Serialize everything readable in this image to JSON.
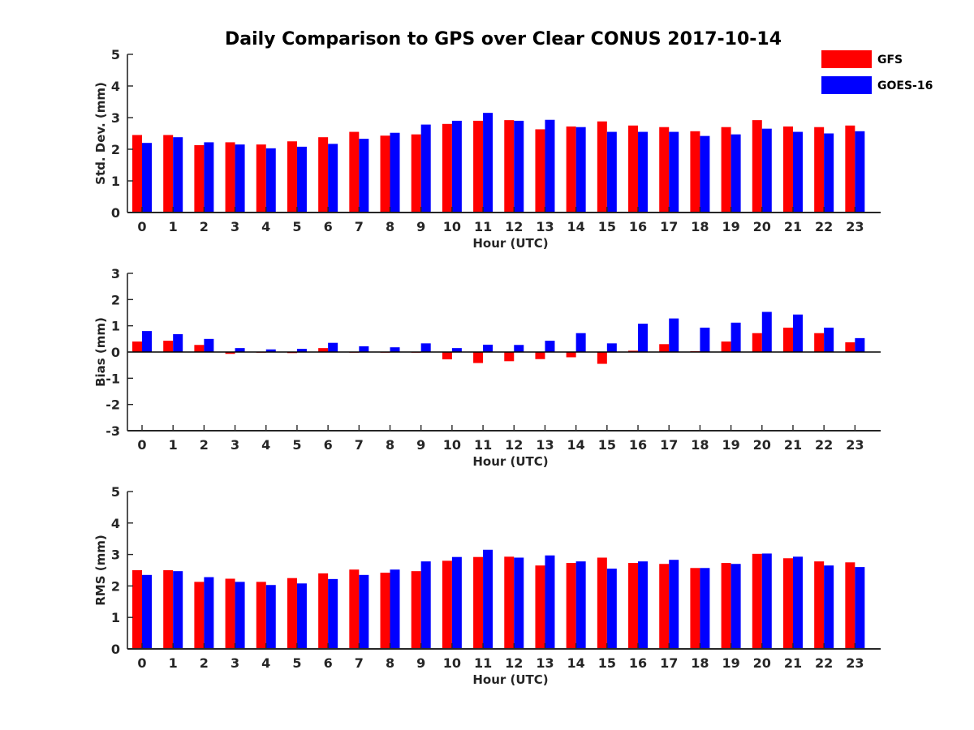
{
  "chart_data": {
    "type": "bar",
    "title": "Daily Comparison to GPS over Clear CONUS 2017-10-14",
    "legend": {
      "position": "top-right",
      "entries": [
        {
          "name": "GFS",
          "color": "#ff0000"
        },
        {
          "name": "GOES-16",
          "color": "#0000ff"
        }
      ]
    },
    "panels": [
      {
        "id": "stddev",
        "ylabel": "Std. Dev. (mm)",
        "xlabel": "Hour (UTC)",
        "ylim": [
          0,
          5
        ],
        "yticks": [
          0,
          1,
          2,
          3,
          4,
          5
        ],
        "categories": [
          "0",
          "1",
          "2",
          "3",
          "4",
          "5",
          "6",
          "7",
          "8",
          "9",
          "10",
          "11",
          "12",
          "13",
          "14",
          "15",
          "16",
          "17",
          "18",
          "19",
          "20",
          "21",
          "22",
          "23"
        ],
        "series": [
          {
            "name": "GFS",
            "values": [
              2.45,
              2.45,
              2.13,
              2.22,
              2.15,
              2.25,
              2.38,
              2.55,
              2.43,
              2.47,
              2.8,
              2.9,
              2.92,
              2.63,
              2.72,
              2.88,
              2.75,
              2.7,
              2.57,
              2.7,
              2.92,
              2.72,
              2.7,
              2.75
            ]
          },
          {
            "name": "GOES-16",
            "values": [
              2.2,
              2.38,
              2.22,
              2.15,
              2.03,
              2.08,
              2.17,
              2.33,
              2.52,
              2.78,
              2.9,
              3.15,
              2.9,
              2.93,
              2.7,
              2.55,
              2.55,
              2.55,
              2.42,
              2.47,
              2.65,
              2.55,
              2.5,
              2.57
            ]
          }
        ]
      },
      {
        "id": "bias",
        "ylabel": "Bias (mm)",
        "xlabel": "Hour (UTC)",
        "ylim": [
          -3,
          3
        ],
        "yticks": [
          -3,
          -2,
          -1,
          0,
          1,
          2,
          3
        ],
        "categories": [
          "0",
          "1",
          "2",
          "3",
          "4",
          "5",
          "6",
          "7",
          "8",
          "9",
          "10",
          "11",
          "12",
          "13",
          "14",
          "15",
          "16",
          "17",
          "18",
          "19",
          "20",
          "21",
          "22",
          "23"
        ],
        "series": [
          {
            "name": "GFS",
            "values": [
              0.4,
              0.43,
              0.27,
              -0.07,
              0.0,
              -0.04,
              0.15,
              0.0,
              0.0,
              0.0,
              -0.28,
              -0.42,
              -0.35,
              -0.27,
              -0.2,
              -0.45,
              0.05,
              0.3,
              0.03,
              0.4,
              0.72,
              0.93,
              0.72,
              0.37
            ]
          },
          {
            "name": "GOES-16",
            "values": [
              0.8,
              0.68,
              0.5,
              0.15,
              0.1,
              0.12,
              0.35,
              0.22,
              0.18,
              0.33,
              0.15,
              0.28,
              0.27,
              0.43,
              0.72,
              0.33,
              1.08,
              1.28,
              0.93,
              1.12,
              1.53,
              1.43,
              0.93,
              0.53
            ]
          }
        ]
      },
      {
        "id": "rms",
        "ylabel": "RMS (mm)",
        "xlabel": "Hour (UTC)",
        "ylim": [
          0,
          5
        ],
        "yticks": [
          0,
          1,
          2,
          3,
          4,
          5
        ],
        "categories": [
          "0",
          "1",
          "2",
          "3",
          "4",
          "5",
          "6",
          "7",
          "8",
          "9",
          "10",
          "11",
          "12",
          "13",
          "14",
          "15",
          "16",
          "17",
          "18",
          "19",
          "20",
          "21",
          "22",
          "23"
        ],
        "series": [
          {
            "name": "GFS",
            "values": [
              2.5,
              2.5,
              2.13,
              2.23,
              2.13,
              2.25,
              2.4,
              2.52,
              2.42,
              2.47,
              2.8,
              2.92,
              2.93,
              2.65,
              2.73,
              2.9,
              2.73,
              2.7,
              2.57,
              2.73,
              3.02,
              2.88,
              2.78,
              2.75
            ]
          },
          {
            "name": "GOES-16",
            "values": [
              2.35,
              2.47,
              2.28,
              2.13,
              2.03,
              2.08,
              2.22,
              2.35,
              2.52,
              2.78,
              2.92,
              3.15,
              2.9,
              2.97,
              2.78,
              2.55,
              2.78,
              2.83,
              2.57,
              2.7,
              3.03,
              2.93,
              2.65,
              2.6
            ]
          }
        ]
      }
    ]
  }
}
